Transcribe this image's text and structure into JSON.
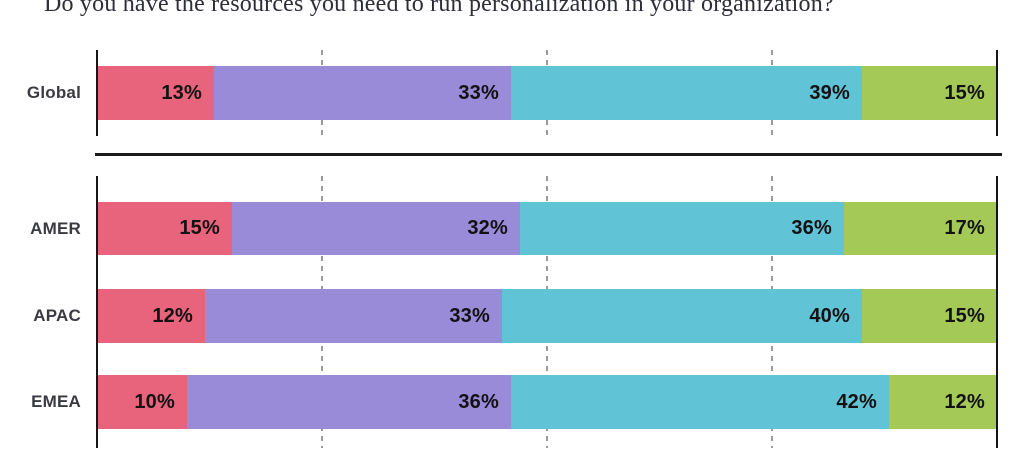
{
  "chart_data": {
    "type": "bar",
    "variant": "stacked-horizontal",
    "title": "Do you have the resources you need to run personalization in your organization?",
    "categories": [
      "Global",
      "AMER",
      "APAC",
      "EMEA"
    ],
    "series": [
      {
        "name": "pink",
        "color": "#E8637C",
        "values": [
          13,
          15,
          12,
          10
        ]
      },
      {
        "name": "purple",
        "color": "#9A8BD8",
        "values": [
          33,
          32,
          33,
          36
        ]
      },
      {
        "name": "teal",
        "color": "#61C3D6",
        "values": [
          39,
          36,
          40,
          42
        ]
      },
      {
        "name": "green",
        "color": "#A5C957",
        "values": [
          15,
          17,
          15,
          12
        ]
      }
    ],
    "value_suffix": "%",
    "xlim": [
      0,
      100
    ],
    "gridlines": [
      25,
      50,
      75
    ],
    "legend": null,
    "axis_color": "#161616",
    "gridline_color": "#9A9A9A"
  }
}
